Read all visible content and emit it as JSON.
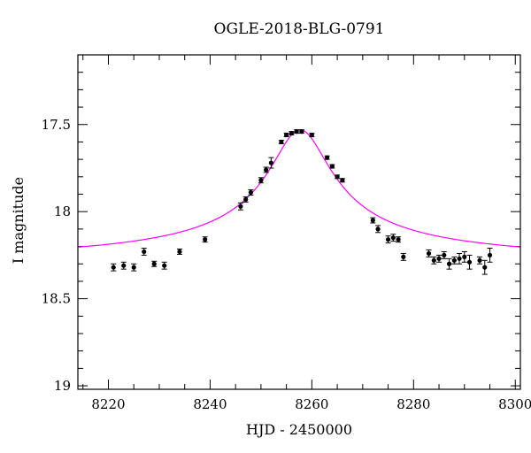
{
  "chart_data": {
    "type": "scatter",
    "title": "OGLE-2018-BLG-0791",
    "xlabel": "HJD - 2450000",
    "ylabel": "I magnitude",
    "xlim": [
      8214,
      8301
    ],
    "ylim": [
      19.02,
      17.1
    ],
    "y_inverted": true,
    "x_ticks": [
      "8220",
      "8240",
      "8260",
      "8280",
      "8300"
    ],
    "y_ticks": [
      "17.5",
      "18",
      "18.5",
      "19"
    ],
    "grid": false,
    "colors": {
      "points": "#000000",
      "model": "#ff00ff"
    },
    "series": [
      {
        "kind": "points-with-errorbars",
        "x": [
          8221,
          8223,
          8225,
          8227,
          8229,
          8231,
          8234,
          8239,
          8246,
          8247,
          8248,
          8250,
          8251,
          8252,
          8254,
          8255,
          8256,
          8257,
          8258,
          8260,
          8263,
          8264,
          8265,
          8266,
          8272,
          8273,
          8275,
          8276,
          8277,
          8278,
          8283,
          8284,
          8285,
          8286,
          8287,
          8288,
          8289,
          8290,
          8291,
          8293,
          8294,
          8295
        ],
        "y": [
          18.32,
          18.31,
          18.32,
          18.23,
          18.3,
          18.31,
          18.23,
          18.16,
          17.97,
          17.93,
          17.89,
          17.82,
          17.76,
          17.72,
          17.6,
          17.56,
          17.55,
          17.54,
          17.54,
          17.56,
          17.69,
          17.74,
          17.8,
          17.82,
          18.05,
          18.1,
          18.16,
          18.15,
          18.16,
          18.26,
          18.24,
          18.28,
          18.27,
          18.25,
          18.3,
          18.28,
          18.27,
          18.26,
          18.29,
          18.28,
          18.32,
          18.25
        ],
        "yerr": [
          0.02,
          0.02,
          0.02,
          0.02,
          0.015,
          0.02,
          0.015,
          0.015,
          0.02,
          0.015,
          0.015,
          0.015,
          0.015,
          0.03,
          0.01,
          0.01,
          0.01,
          0.01,
          0.01,
          0.01,
          0.01,
          0.01,
          0.01,
          0.01,
          0.015,
          0.02,
          0.02,
          0.02,
          0.015,
          0.02,
          0.02,
          0.02,
          0.02,
          0.02,
          0.03,
          0.02,
          0.03,
          0.03,
          0.04,
          0.02,
          0.04,
          0.04
        ]
      },
      {
        "kind": "model-curve",
        "t0": 8257.7,
        "peak_mag": 17.53,
        "baseline_mag": 18.31,
        "width_days": 7.6
      }
    ]
  }
}
